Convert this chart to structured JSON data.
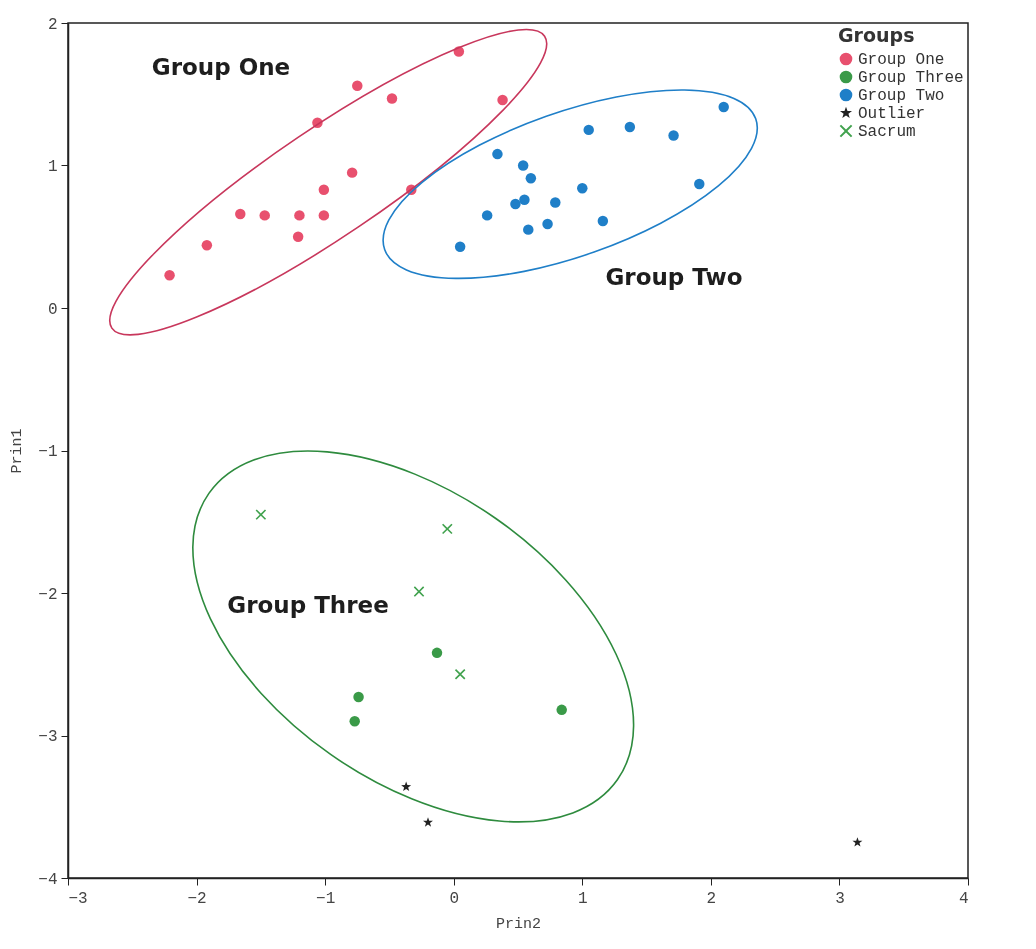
{
  "chart_data": {
    "type": "scatter",
    "xlabel": "Prin2",
    "ylabel": "Prin1",
    "legend_title": "Groups",
    "legend": "top right",
    "xlim": [
      -3,
      4
    ],
    "ylim": [
      -4,
      2
    ],
    "xticks": [
      -3,
      -2,
      -1,
      0,
      1,
      2,
      3,
      4
    ],
    "yticks": [
      -4,
      -3,
      -2,
      -1,
      0,
      1,
      2
    ],
    "annotations": [
      "Group One",
      "Group Two",
      "Group Three"
    ],
    "series": [
      {
        "name": "Group One",
        "marker": "circle",
        "color": "#e8506e",
        "x": [
          -2.21,
          -1.92,
          -1.66,
          -1.47,
          -1.2,
          -1.21,
          -1.01,
          -1.01,
          -1.06,
          -0.79,
          -0.75,
          -0.48,
          -0.33,
          0.04,
          0.38
        ],
        "values": [
          0.23,
          0.44,
          0.66,
          0.65,
          0.65,
          0.5,
          0.65,
          0.83,
          1.3,
          0.95,
          1.56,
          1.47,
          0.83,
          1.8,
          1.46
        ]
      },
      {
        "name": "Group Three",
        "marker": "circle",
        "color": "#3a9a48",
        "x": [
          -0.74,
          -0.77,
          -0.13,
          0.84
        ],
        "values": [
          -2.73,
          -2.9,
          -2.42,
          -2.82
        ]
      },
      {
        "name": "Group Two",
        "marker": "circle",
        "color": "#1f7fc8",
        "x": [
          0.05,
          0.26,
          0.34,
          0.54,
          0.6,
          0.48,
          0.55,
          0.58,
          0.73,
          0.79,
          1.0,
          1.05,
          1.16,
          1.37,
          1.71,
          1.91,
          2.1
        ],
        "values": [
          0.43,
          0.65,
          1.08,
          1.0,
          0.91,
          0.73,
          0.76,
          0.55,
          0.59,
          0.74,
          0.84,
          1.25,
          0.61,
          1.27,
          1.21,
          0.87,
          1.41
        ]
      },
      {
        "name": "Outlier",
        "marker": "star",
        "color": "#222222",
        "x": [
          -0.37,
          -0.2,
          3.14
        ],
        "values": [
          -3.36,
          -3.61,
          -3.75
        ]
      },
      {
        "name": "Sacrum",
        "marker": "cross",
        "color": "#41a24e",
        "x": [
          -1.5,
          -0.05,
          -0.27,
          0.05
        ],
        "values": [
          -1.45,
          -1.55,
          -1.99,
          -2.57
        ]
      }
    ]
  }
}
